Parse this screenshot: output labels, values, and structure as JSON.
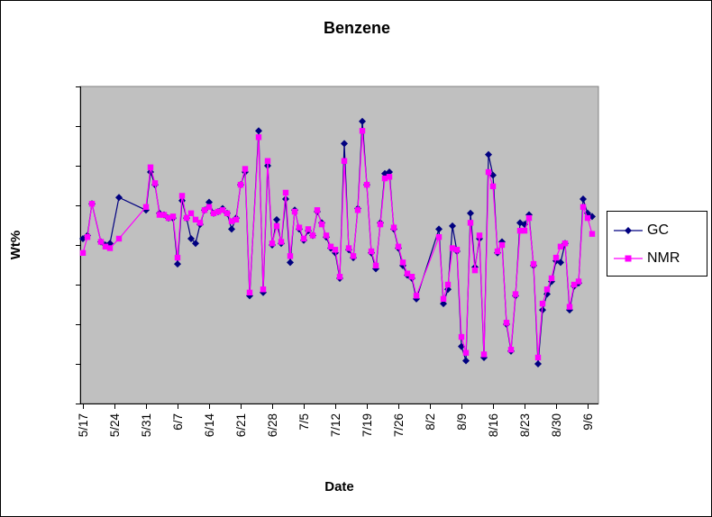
{
  "title": "Benzene",
  "x_axis": {
    "label": "Date"
  },
  "y_axis": {
    "label": "Wt%",
    "tick_count": 9,
    "tick_labels_visible": false
  },
  "plot": {
    "background_color": "#C0C0C0",
    "border_color": "#808080",
    "frame_border_color": "#000000"
  },
  "legend": {
    "items": [
      {
        "label": "GC",
        "color": "#000080",
        "marker": "diamond"
      },
      {
        "label": "NMR",
        "color": "#FF00FF",
        "marker": "square"
      }
    ]
  },
  "chart_data": {
    "type": "line",
    "title": "Benzene",
    "xlabel": "Date",
    "ylabel": "Wt%",
    "x_unit": "day",
    "x_start": "5/17",
    "x_end": "9/7",
    "x_tick_labels": [
      "5/17",
      "5/24",
      "5/31",
      "6/7",
      "6/14",
      "6/21",
      "6/28",
      "7/5",
      "7/12",
      "7/19",
      "7/26",
      "8/2",
      "8/9",
      "8/16",
      "8/23",
      "8/30",
      "9/6"
    ],
    "x_tick_interval_days": 7,
    "ylim": [
      0,
      100
    ],
    "y_ticks_unlabeled": true,
    "grid": false,
    "legend_position": "right",
    "note": "y values in relative Wt% units (axis shown without numeric labels); null = missing day (line connects across gap)",
    "series": [
      {
        "name": "GC",
        "color": "#000080",
        "marker": "diamond",
        "values": [
          52,
          53,
          63,
          null,
          51,
          50,
          50.5,
          null,
          65,
          null,
          null,
          null,
          null,
          null,
          61,
          73,
          69,
          60,
          59.5,
          58.5,
          58.5,
          44,
          64,
          58.5,
          52,
          50.5,
          56.5,
          61,
          63.5,
          60,
          60.5,
          61.5,
          60,
          55,
          58.5,
          69,
          73,
          34,
          null,
          86,
          35,
          75,
          50,
          58,
          50.5,
          64.5,
          44.5,
          61,
          55,
          51.5,
          54.5,
          53,
          60.5,
          57,
          52.5,
          49,
          47.5,
          39.5,
          82,
          48.5,
          46,
          61.5,
          89,
          69,
          47.5,
          42.5,
          57,
          72.5,
          73,
          55,
          49,
          43.5,
          40.5,
          39.5,
          33,
          null,
          null,
          null,
          null,
          55,
          31.5,
          36,
          56,
          48,
          18,
          13.5,
          60,
          43,
          52,
          14.5,
          78.5,
          72,
          47.5,
          51,
          25,
          16.5,
          34,
          57,
          56.5,
          59.5,
          43.5,
          12.5,
          29.5,
          34.5,
          38.5,
          45,
          44.5,
          50.5,
          29.5,
          37,
          38,
          64.5,
          60,
          59
        ]
      },
      {
        "name": "NMR",
        "color": "#FF00FF",
        "marker": "square",
        "values": [
          47.5,
          52.5,
          63,
          null,
          51,
          49.5,
          49,
          null,
          52,
          null,
          null,
          null,
          null,
          null,
          62,
          74.5,
          69.5,
          59.5,
          59.5,
          58.5,
          59,
          46,
          65.5,
          58.5,
          60,
          58,
          57,
          61,
          62,
          60,
          60.5,
          61,
          60,
          57.5,
          58,
          69,
          74,
          35,
          null,
          84,
          36,
          76.5,
          50.5,
          56,
          51,
          66.5,
          46.5,
          60.5,
          55.5,
          52,
          55,
          53,
          61,
          56.5,
          53,
          49.5,
          48.5,
          40,
          76.5,
          49,
          46.5,
          61,
          86,
          69,
          48,
          43.5,
          56.5,
          71,
          71.5,
          55.5,
          49.5,
          44.5,
          41,
          40,
          34,
          null,
          null,
          null,
          null,
          52.5,
          33,
          37.5,
          49,
          48.5,
          21,
          16,
          57,
          42,
          53,
          15.5,
          73,
          68.5,
          48,
          50,
          25.5,
          17,
          34.5,
          54.5,
          54.5,
          58.5,
          44,
          14.5,
          31.5,
          36,
          39.5,
          46,
          49.5,
          50.5,
          30.5,
          37.5,
          38.5,
          62,
          58.5,
          53.5
        ]
      }
    ]
  }
}
